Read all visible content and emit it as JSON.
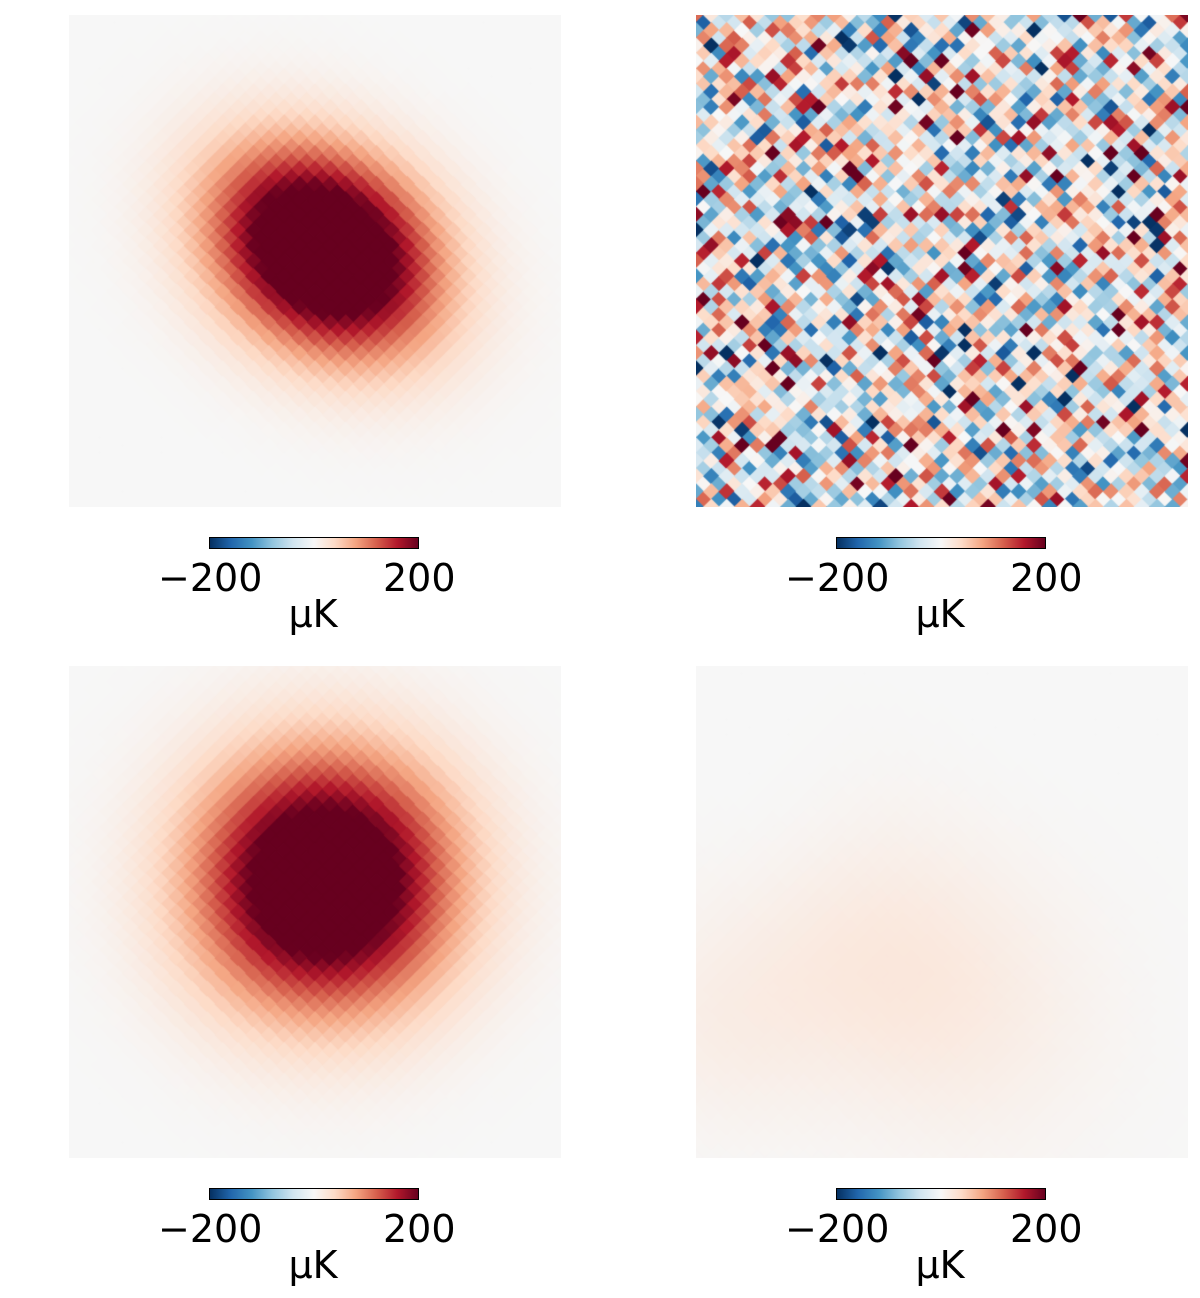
{
  "chart_data": [
    {
      "type": "heatmap",
      "description_hint": "compact red blob, elongated toward lower-right",
      "colormap": [
        "#053061",
        "#2166ac",
        "#4393c3",
        "#92c5de",
        "#d1e5f0",
        "#f7f7f7",
        "#fddbc7",
        "#f4a582",
        "#d6604d",
        "#b2182b",
        "#67001f"
      ],
      "colorbar": {
        "min": -200,
        "max": 200,
        "tick_labels": [
          "−200",
          "200"
        ],
        "unit": "μK"
      },
      "model": {
        "kind": "blob",
        "amp": 320,
        "cx": 0.52,
        "cy": 0.48,
        "sigma": 0.16,
        "ell": 0.78,
        "angle_deg": -35
      },
      "grid_n": 32
    },
    {
      "type": "heatmap",
      "description_hint": "pixelated white-noise-like map",
      "colormap": [
        "#053061",
        "#2166ac",
        "#4393c3",
        "#92c5de",
        "#d1e5f0",
        "#f7f7f7",
        "#fddbc7",
        "#f4a582",
        "#d6604d",
        "#b2182b",
        "#67001f"
      ],
      "colorbar": {
        "min": -200,
        "max": 200,
        "tick_labels": [
          "−200",
          "200"
        ],
        "unit": "μK"
      },
      "model": {
        "kind": "noise",
        "amp": 95,
        "seed": 7
      },
      "grid_n": 32
    },
    {
      "type": "heatmap",
      "description_hint": "symmetric red blob centered",
      "colormap": [
        "#053061",
        "#2166ac",
        "#4393c3",
        "#92c5de",
        "#d1e5f0",
        "#f7f7f7",
        "#fddbc7",
        "#f4a582",
        "#d6604d",
        "#b2182b",
        "#67001f"
      ],
      "colorbar": {
        "min": -200,
        "max": 200,
        "tick_labels": [
          "−200",
          "200"
        ],
        "unit": "μK"
      },
      "model": {
        "kind": "blob",
        "amp": 300,
        "cx": 0.52,
        "cy": 0.44,
        "sigma": 0.17,
        "ell": 1.0,
        "angle_deg": 0
      },
      "grid_n": 32
    },
    {
      "type": "heatmap",
      "description_hint": "very faint smooth residual",
      "colormap": [
        "#053061",
        "#2166ac",
        "#4393c3",
        "#92c5de",
        "#d1e5f0",
        "#f7f7f7",
        "#fddbc7",
        "#f4a582",
        "#d6604d",
        "#b2182b",
        "#67001f"
      ],
      "colorbar": {
        "min": -200,
        "max": 200,
        "tick_labels": [
          "−200",
          "200"
        ],
        "unit": "μK"
      },
      "model": {
        "kind": "smooth",
        "amp": 14,
        "seed": 3
      },
      "grid_n": 32
    }
  ]
}
